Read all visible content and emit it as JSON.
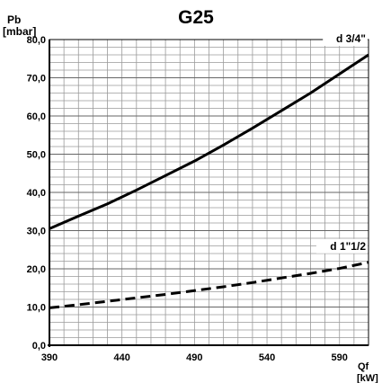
{
  "chart_data": {
    "type": "line",
    "title": "G25",
    "ylabel_line1": "Pb",
    "ylabel_line2": "[mbar]",
    "xlabel_line1": "Qf",
    "xlabel_line2": "[kW]",
    "xlim": [
      390,
      610
    ],
    "ylim": [
      0,
      80
    ],
    "x_ticks": [
      390,
      440,
      490,
      540,
      590
    ],
    "x_tick_labels": [
      "390",
      "440",
      "490",
      "540",
      "590"
    ],
    "y_ticks": [
      0,
      10,
      20,
      30,
      40,
      50,
      60,
      70,
      80
    ],
    "y_tick_labels": [
      "0,0",
      "10,0",
      "20,0",
      "30,0",
      "40,0",
      "50,0",
      "60,0",
      "70,0",
      "80,0"
    ],
    "grid": true,
    "series": [
      {
        "name": "d 3/4\"",
        "style": "solid",
        "color": "#000000",
        "x": [
          390,
          410,
          430,
          450,
          470,
          490,
          510,
          530,
          550,
          570,
          590,
          610
        ],
        "y": [
          30.5,
          33.8,
          37.0,
          40.6,
          44.4,
          48.2,
          52.4,
          56.8,
          61.4,
          66.0,
          71.0,
          76.0
        ]
      },
      {
        "name": "d 1\"1/2",
        "style": "dashed",
        "color": "#000000",
        "x": [
          390,
          410,
          430,
          450,
          470,
          490,
          510,
          530,
          550,
          570,
          590,
          610
        ],
        "y": [
          9.8,
          10.6,
          11.5,
          12.4,
          13.3,
          14.3,
          15.3,
          16.4,
          17.6,
          18.8,
          20.1,
          21.7
        ]
      }
    ]
  }
}
